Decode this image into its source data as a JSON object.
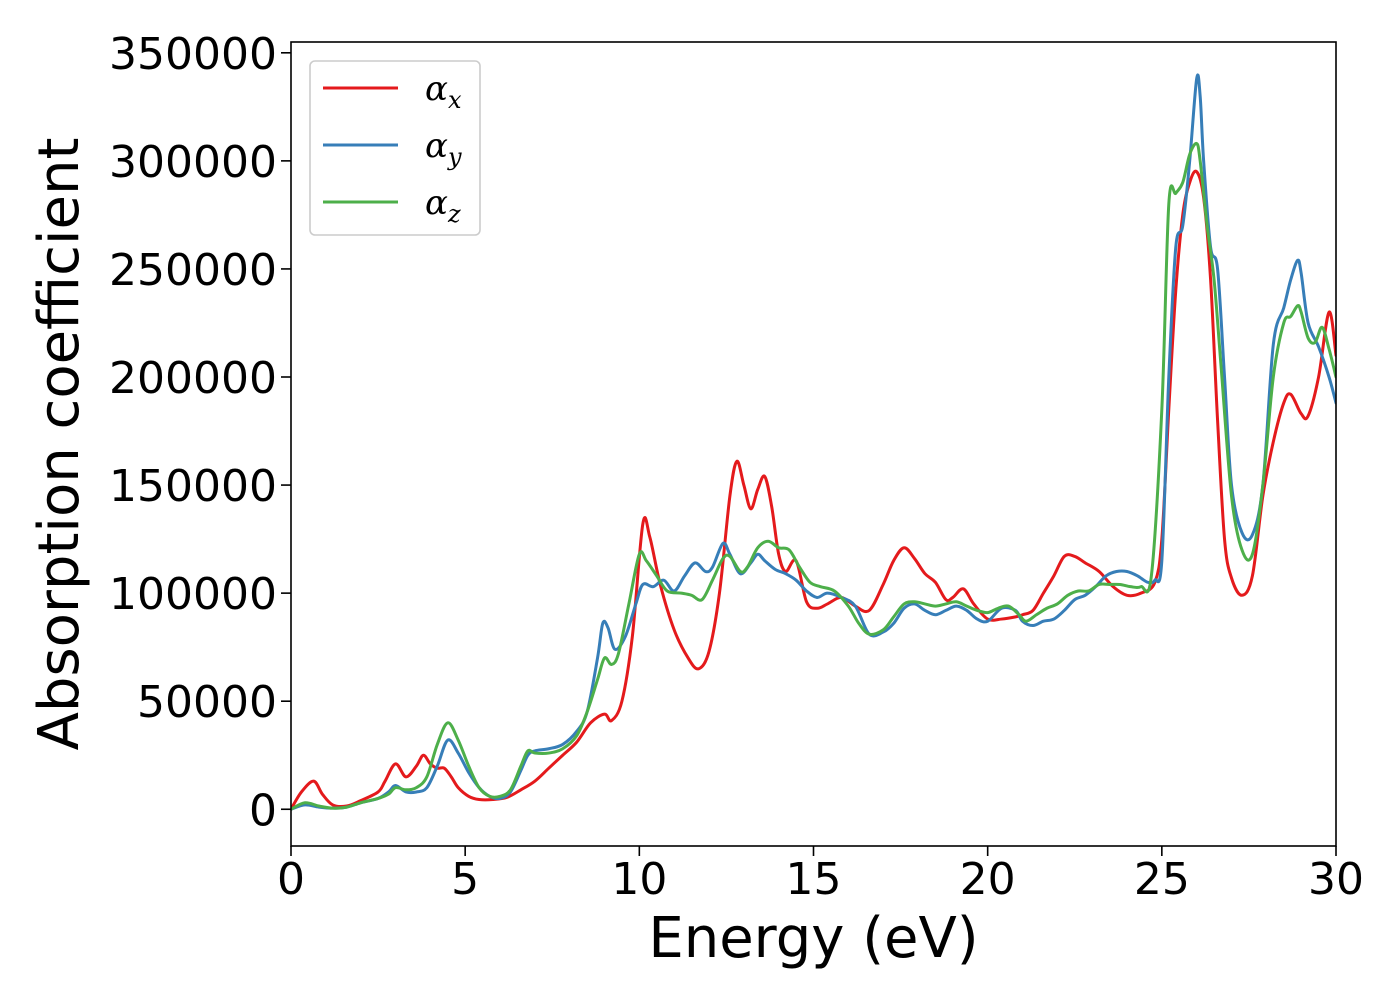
{
  "chart_data": {
    "type": "line",
    "title": "",
    "xlabel": "Energy (eV)",
    "ylabel": "Absorption coefficient",
    "xlim": [
      0,
      30
    ],
    "ylim": [
      -17000,
      355000
    ],
    "xticks": [
      0,
      5,
      10,
      15,
      20,
      25,
      30
    ],
    "yticks": [
      0,
      50000,
      100000,
      150000,
      200000,
      250000,
      300000,
      350000
    ],
    "xtick_labels": [
      "0",
      "5",
      "10",
      "15",
      "20",
      "25",
      "30"
    ],
    "ytick_labels": [
      "0",
      "50000",
      "100000",
      "150000",
      "200000",
      "250000",
      "300000",
      "350000"
    ],
    "grid": false,
    "legend_position": "top-left",
    "series": [
      {
        "name": "αx",
        "symbol": "α",
        "subscript": "x",
        "color": "#e41a1c",
        "x": [
          0,
          0.3,
          0.65,
          0.9,
          1.2,
          1.6,
          2.0,
          2.5,
          2.7,
          3.0,
          3.3,
          3.6,
          3.8,
          4.0,
          4.2,
          4.4,
          4.6,
          4.8,
          5.1,
          5.4,
          5.8,
          6.2,
          6.6,
          7.0,
          7.4,
          7.8,
          8.2,
          8.6,
          9.0,
          9.2,
          9.5,
          9.8,
          10.1,
          10.3,
          10.6,
          11.0,
          11.4,
          11.7,
          12.0,
          12.3,
          12.6,
          12.8,
          13.0,
          13.2,
          13.4,
          13.6,
          13.8,
          14.0,
          14.2,
          14.5,
          14.8,
          15.1,
          15.4,
          15.8,
          16.2,
          16.6,
          17.0,
          17.3,
          17.6,
          17.9,
          18.2,
          18.5,
          18.8,
          19.0,
          19.3,
          19.6,
          20.0,
          20.4,
          20.8,
          21.0,
          21.3,
          21.6,
          21.9,
          22.2,
          22.5,
          22.8,
          23.2,
          23.6,
          24.0,
          24.4,
          24.8,
          25.0,
          25.2,
          25.4,
          25.6,
          25.8,
          26.0,
          26.2,
          26.4,
          26.6,
          26.8,
          27.0,
          27.3,
          27.6,
          27.9,
          28.2,
          28.5,
          28.7,
          29.0,
          29.2,
          29.5,
          29.8,
          30.0
        ],
        "y": [
          0,
          8000,
          13000,
          7000,
          2000,
          1500,
          4000,
          8000,
          13000,
          21000,
          15000,
          20000,
          25000,
          21000,
          19000,
          19000,
          15000,
          10000,
          6000,
          4500,
          4500,
          5500,
          9000,
          13000,
          19000,
          25000,
          31000,
          40000,
          44000,
          41000,
          50000,
          80000,
          132000,
          126000,
          104000,
          83000,
          70000,
          65000,
          73000,
          100000,
          145000,
          161000,
          150000,
          139000,
          148000,
          154000,
          140000,
          118000,
          110000,
          115000,
          96000,
          93000,
          95000,
          98000,
          94000,
          92000,
          104000,
          115000,
          121000,
          116000,
          109000,
          105000,
          97000,
          98000,
          102000,
          95000,
          88000,
          88000,
          89000,
          90000,
          92000,
          100000,
          108000,
          117000,
          117000,
          114000,
          110000,
          103000,
          99000,
          100000,
          105000,
          125000,
          185000,
          240000,
          275000,
          290000,
          295000,
          283000,
          245000,
          180000,
          125000,
          107000,
          99000,
          108000,
          145000,
          170000,
          188000,
          192000,
          183000,
          182000,
          200000,
          230000,
          210000
        ]
      },
      {
        "name": "αy",
        "symbol": "α",
        "subscript": "y",
        "color": "#377eb8",
        "x": [
          0,
          0.4,
          0.8,
          1.2,
          1.6,
          2.0,
          2.5,
          2.8,
          3.0,
          3.3,
          3.6,
          3.9,
          4.2,
          4.5,
          4.8,
          5.1,
          5.4,
          5.7,
          6.0,
          6.3,
          6.6,
          6.8,
          7.0,
          7.4,
          7.8,
          8.2,
          8.5,
          8.8,
          8.95,
          9.1,
          9.3,
          9.6,
          9.9,
          10.1,
          10.4,
          10.7,
          11.0,
          11.3,
          11.6,
          11.9,
          12.1,
          12.4,
          12.6,
          12.9,
          13.2,
          13.4,
          13.6,
          13.9,
          14.2,
          14.5,
          14.8,
          15.1,
          15.4,
          15.8,
          16.2,
          16.6,
          17.0,
          17.3,
          17.6,
          17.9,
          18.2,
          18.5,
          18.8,
          19.1,
          19.4,
          19.7,
          20.0,
          20.4,
          20.8,
          21.0,
          21.3,
          21.6,
          21.9,
          22.2,
          22.5,
          22.8,
          23.1,
          23.4,
          23.7,
          24.0,
          24.3,
          24.6,
          24.8,
          25.0,
          25.2,
          25.4,
          25.6,
          25.8,
          26.0,
          26.1,
          26.2,
          26.4,
          26.6,
          26.8,
          27.0,
          27.3,
          27.6,
          27.9,
          28.2,
          28.5,
          28.7,
          28.9,
          29.0,
          29.2,
          29.5,
          29.8,
          30.0
        ],
        "y": [
          0,
          2000,
          1000,
          500,
          1000,
          3000,
          5000,
          8000,
          11000,
          8000,
          8000,
          10000,
          20000,
          32000,
          26000,
          17000,
          10000,
          6000,
          5000,
          8000,
          18000,
          25000,
          27000,
          28000,
          30000,
          36000,
          45000,
          70000,
          86000,
          84000,
          74000,
          80000,
          95000,
          104000,
          103000,
          106000,
          101000,
          108000,
          114000,
          110000,
          112000,
          123000,
          118000,
          109000,
          114000,
          118000,
          115000,
          111000,
          109000,
          106000,
          101000,
          98000,
          100000,
          98000,
          94000,
          81000,
          82000,
          86000,
          93000,
          95000,
          92000,
          90000,
          92000,
          94000,
          92000,
          88000,
          87000,
          93000,
          92000,
          87000,
          85000,
          87000,
          88000,
          92000,
          97000,
          99000,
          103000,
          108000,
          110000,
          110000,
          108000,
          105000,
          106000,
          115000,
          200000,
          260000,
          270000,
          300000,
          338000,
          330000,
          300000,
          260000,
          250000,
          200000,
          150000,
          128000,
          127000,
          150000,
          215000,
          232000,
          245000,
          254000,
          248000,
          225000,
          214000,
          200000,
          188000
        ]
      },
      {
        "name": "αz",
        "symbol": "α",
        "subscript": "z",
        "color": "#4daf4a",
        "x": [
          0,
          0.4,
          0.8,
          1.2,
          1.6,
          2.0,
          2.5,
          2.8,
          3.0,
          3.3,
          3.6,
          3.9,
          4.2,
          4.5,
          4.8,
          5.1,
          5.4,
          5.7,
          6.0,
          6.3,
          6.6,
          6.8,
          7.0,
          7.4,
          7.8,
          8.2,
          8.5,
          8.8,
          9.0,
          9.2,
          9.4,
          9.7,
          10.0,
          10.2,
          10.5,
          10.8,
          11.2,
          11.5,
          11.8,
          12.1,
          12.4,
          12.6,
          12.9,
          13.1,
          13.4,
          13.7,
          14.0,
          14.3,
          14.6,
          14.9,
          15.2,
          15.6,
          16.0,
          16.3,
          16.6,
          17.0,
          17.3,
          17.6,
          17.9,
          18.2,
          18.5,
          18.8,
          19.1,
          19.4,
          19.7,
          20.0,
          20.3,
          20.6,
          20.9,
          21.1,
          21.4,
          21.7,
          22.0,
          22.3,
          22.6,
          22.9,
          23.2,
          23.5,
          23.8,
          24.1,
          24.4,
          24.7,
          25.0,
          25.2,
          25.4,
          25.6,
          25.8,
          26.0,
          26.1,
          26.3,
          26.5,
          26.7,
          27.0,
          27.3,
          27.6,
          27.9,
          28.2,
          28.5,
          28.7,
          28.9,
          29.0,
          29.2,
          29.4,
          29.6,
          29.8,
          30.0
        ],
        "y": [
          0,
          3000,
          1500,
          500,
          1000,
          3000,
          5000,
          7000,
          10000,
          9000,
          10000,
          15000,
          30000,
          40000,
          32000,
          20000,
          10000,
          6000,
          6000,
          9000,
          20000,
          27000,
          26000,
          26000,
          28000,
          34000,
          45000,
          60000,
          70000,
          67000,
          72000,
          95000,
          118000,
          115000,
          108000,
          101000,
          100000,
          99000,
          97000,
          106000,
          116000,
          117000,
          110000,
          112000,
          121000,
          124000,
          121000,
          120000,
          112000,
          105000,
          103000,
          101000,
          94000,
          86000,
          81000,
          83000,
          89000,
          95000,
          96000,
          95000,
          94000,
          95000,
          96000,
          94000,
          92000,
          91000,
          93000,
          94000,
          90000,
          87000,
          90000,
          93000,
          95000,
          99000,
          101000,
          101000,
          104000,
          104000,
          104000,
          103000,
          103000,
          108000,
          185000,
          280000,
          285000,
          290000,
          303000,
          308000,
          300000,
          270000,
          245000,
          205000,
          145000,
          120000,
          118000,
          150000,
          200000,
          225000,
          228000,
          233000,
          230000,
          218000,
          216000,
          223000,
          213000,
          200000
        ]
      }
    ]
  }
}
